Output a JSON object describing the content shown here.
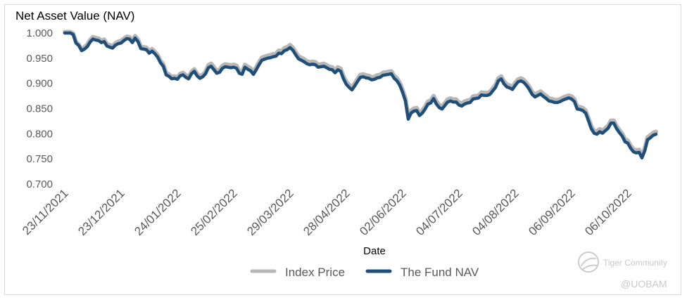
{
  "chart_data": {
    "type": "line",
    "title": "",
    "ylabel": "Net Asset Value (NAV)",
    "xlabel": "Date",
    "ylim": [
      0.7,
      1.0
    ],
    "yticks": [
      "1.000",
      "0.950",
      "0.900",
      "0.850",
      "0.800",
      "0.750",
      "0.700"
    ],
    "ytick_values": [
      1.0,
      0.95,
      0.9,
      0.85,
      0.8,
      0.75,
      0.7
    ],
    "xticks": [
      "23/11/2021",
      "23/12/2021",
      "24/01/2022",
      "25/02/2022",
      "29/03/2022",
      "28/04/2022",
      "02/06/2022",
      "04/07/2022",
      "04/08/2022",
      "06/09/2022",
      "06/10/2022"
    ],
    "xtick_index": [
      0,
      20,
      40,
      60,
      80,
      100,
      120,
      140,
      160,
      180,
      200
    ],
    "grid": false,
    "legend": "bottom-center",
    "series": [
      {
        "name": "Index Price",
        "color": "#b7b7b7",
        "values": [
          1.0,
          1.0,
          1.0,
          0.997,
          0.98,
          0.975,
          0.965,
          0.97,
          0.975,
          0.984,
          0.99,
          0.988,
          0.987,
          0.983,
          0.985,
          0.976,
          0.974,
          0.972,
          0.978,
          0.981,
          0.982,
          0.987,
          0.991,
          0.99,
          0.983,
          0.992,
          0.985,
          0.971,
          0.97,
          0.969,
          0.962,
          0.966,
          0.961,
          0.954,
          0.943,
          0.936,
          0.919,
          0.916,
          0.911,
          0.912,
          0.91,
          0.917,
          0.919,
          0.914,
          0.911,
          0.921,
          0.926,
          0.917,
          0.912,
          0.915,
          0.921,
          0.934,
          0.937,
          0.93,
          0.923,
          0.925,
          0.933,
          0.936,
          0.935,
          0.934,
          0.935,
          0.933,
          0.923,
          0.921,
          0.935,
          0.931,
          0.928,
          0.921,
          0.93,
          0.94,
          0.949,
          0.951,
          0.953,
          0.954,
          0.956,
          0.957,
          0.963,
          0.962,
          0.968,
          0.97,
          0.974,
          0.969,
          0.96,
          0.952,
          0.949,
          0.946,
          0.942,
          0.94,
          0.941,
          0.94,
          0.935,
          0.936,
          0.937,
          0.934,
          0.931,
          0.93,
          0.924,
          0.93,
          0.927,
          0.912,
          0.901,
          0.895,
          0.89,
          0.898,
          0.907,
          0.915,
          0.916,
          0.914,
          0.913,
          0.91,
          0.911,
          0.914,
          0.915,
          0.919,
          0.92,
          0.921,
          0.922,
          0.913,
          0.908,
          0.899,
          0.885,
          0.868,
          0.832,
          0.844,
          0.848,
          0.849,
          0.839,
          0.844,
          0.852,
          0.862,
          0.864,
          0.873,
          0.862,
          0.855,
          0.852,
          0.859,
          0.866,
          0.868,
          0.866,
          0.866,
          0.86,
          0.858,
          0.862,
          0.864,
          0.865,
          0.872,
          0.873,
          0.874,
          0.88,
          0.879,
          0.879,
          0.881,
          0.888,
          0.895,
          0.908,
          0.912,
          0.902,
          0.896,
          0.894,
          0.891,
          0.899,
          0.906,
          0.908,
          0.905,
          0.899,
          0.891,
          0.881,
          0.876,
          0.879,
          0.882,
          0.877,
          0.873,
          0.868,
          0.867,
          0.865,
          0.865,
          0.867,
          0.87,
          0.872,
          0.874,
          0.872,
          0.867,
          0.852,
          0.851,
          0.849,
          0.844,
          0.829,
          0.813,
          0.804,
          0.802,
          0.807,
          0.804,
          0.809,
          0.814,
          0.824,
          0.824,
          0.813,
          0.805,
          0.798,
          0.787,
          0.784,
          0.774,
          0.767,
          0.765,
          0.766,
          0.755,
          0.769,
          0.791,
          0.795,
          0.8,
          0.802
        ]
      },
      {
        "name": "The Fund NAV",
        "color": "#1f4e79",
        "values": [
          1.0,
          1.0,
          1.0,
          0.997,
          0.98,
          0.975,
          0.965,
          0.968,
          0.973,
          0.982,
          0.988,
          0.986,
          0.985,
          0.981,
          0.983,
          0.974,
          0.972,
          0.97,
          0.976,
          0.979,
          0.98,
          0.985,
          0.989,
          0.988,
          0.981,
          0.99,
          0.983,
          0.969,
          0.968,
          0.967,
          0.96,
          0.964,
          0.959,
          0.952,
          0.941,
          0.934,
          0.917,
          0.914,
          0.909,
          0.91,
          0.908,
          0.915,
          0.917,
          0.912,
          0.909,
          0.919,
          0.924,
          0.915,
          0.91,
          0.913,
          0.919,
          0.931,
          0.934,
          0.927,
          0.92,
          0.922,
          0.93,
          0.933,
          0.932,
          0.931,
          0.932,
          0.93,
          0.92,
          0.918,
          0.932,
          0.928,
          0.925,
          0.918,
          0.927,
          0.937,
          0.946,
          0.948,
          0.95,
          0.951,
          0.953,
          0.954,
          0.96,
          0.959,
          0.965,
          0.967,
          0.971,
          0.966,
          0.957,
          0.949,
          0.946,
          0.943,
          0.939,
          0.937,
          0.938,
          0.937,
          0.932,
          0.933,
          0.934,
          0.931,
          0.928,
          0.927,
          0.921,
          0.927,
          0.924,
          0.909,
          0.898,
          0.892,
          0.887,
          0.895,
          0.904,
          0.912,
          0.913,
          0.911,
          0.91,
          0.907,
          0.908,
          0.911,
          0.912,
          0.916,
          0.917,
          0.918,
          0.919,
          0.91,
          0.905,
          0.896,
          0.882,
          0.865,
          0.829,
          0.841,
          0.845,
          0.846,
          0.836,
          0.841,
          0.849,
          0.859,
          0.861,
          0.87,
          0.859,
          0.852,
          0.849,
          0.856,
          0.863,
          0.865,
          0.863,
          0.863,
          0.857,
          0.855,
          0.859,
          0.861,
          0.862,
          0.869,
          0.87,
          0.871,
          0.877,
          0.876,
          0.876,
          0.878,
          0.885,
          0.892,
          0.905,
          0.909,
          0.899,
          0.893,
          0.891,
          0.888,
          0.896,
          0.903,
          0.905,
          0.902,
          0.896,
          0.888,
          0.878,
          0.873,
          0.876,
          0.879,
          0.874,
          0.87,
          0.865,
          0.864,
          0.862,
          0.862,
          0.864,
          0.867,
          0.869,
          0.871,
          0.869,
          0.864,
          0.849,
          0.848,
          0.846,
          0.841,
          0.826,
          0.81,
          0.801,
          0.799,
          0.804,
          0.801,
          0.806,
          0.811,
          0.821,
          0.821,
          0.81,
          0.802,
          0.795,
          0.784,
          0.781,
          0.771,
          0.764,
          0.762,
          0.763,
          0.752,
          0.766,
          0.788,
          0.792,
          0.797,
          0.799
        ]
      }
    ]
  },
  "watermark": {
    "community": "Tiger Community",
    "handle": "@UOBAM"
  }
}
